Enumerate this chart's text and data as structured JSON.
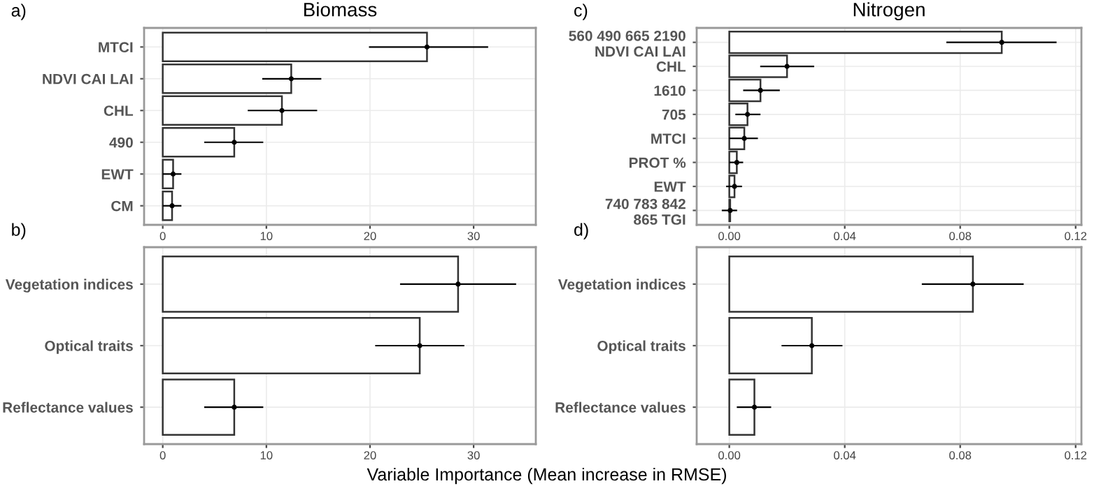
{
  "chart_data": [
    {
      "type": "bar",
      "orientation": "horizontal",
      "title": "Biomass",
      "annotations": [
        "a)"
      ],
      "categories": [
        "MTCI",
        "NDVI CAI LAI",
        "CHL",
        "490",
        "EWT",
        "CM"
      ],
      "series": [
        {
          "type": "bar",
          "color": "#ffffff",
          "values": [
            25.5,
            12.4,
            11.5,
            6.9,
            1.0,
            0.9
          ]
        },
        {
          "type": "scatter",
          "color": "#000000",
          "marker": "circle",
          "values": [
            25.5,
            12.4,
            11.5,
            6.9,
            1.0,
            0.9
          ],
          "errors": [
            [
              19.9,
              31.4
            ],
            [
              9.6,
              15.3
            ],
            [
              8.2,
              14.9
            ],
            [
              4.0,
              9.7
            ],
            [
              0,
              1.8
            ],
            [
              0,
              1.8
            ]
          ]
        }
      ],
      "xlim": [
        -1.8,
        36
      ],
      "xticks": [
        0,
        10,
        20,
        30
      ],
      "grid": true
    },
    {
      "type": "bar",
      "orientation": "horizontal",
      "title": "Nitrogen",
      "annotations": [
        "c)"
      ],
      "categories": [
        "560 490 665 2190\nNDVI CAI LAI",
        "CHL",
        "1610",
        "705",
        "MTCI",
        "PROT %",
        "EWT",
        "740 783 842\n865 TGI"
      ],
      "series": [
        {
          "type": "bar",
          "color": "#ffffff",
          "values": [
            0.0944,
            0.02,
            0.0108,
            0.0063,
            0.0052,
            0.0026,
            0.0018,
            0.0003
          ]
        },
        {
          "type": "scatter",
          "color": "#000000",
          "marker": "circle",
          "values": [
            0.0944,
            0.02,
            0.0108,
            0.0063,
            0.0052,
            0.0026,
            0.0018,
            0.0003
          ],
          "errors": [
            [
              0.0752,
              0.1134
            ],
            [
              0.0107,
              0.0294
            ],
            [
              0.0048,
              0.0175
            ],
            [
              0.0021,
              0.0108
            ],
            [
              0,
              0.0099
            ],
            [
              0,
              0.0048
            ],
            [
              -0.0011,
              0.0044
            ],
            [
              -0.0026,
              0.0027
            ]
          ]
        }
      ],
      "xlim": [
        -0.0113,
        0.122
      ],
      "xticks": [
        {
          "value": 0,
          "label": "0.00"
        },
        0.04,
        0.08,
        0.12
      ],
      "grid": true
    },
    {
      "type": "bar",
      "orientation": "horizontal",
      "annotations": [
        "b)"
      ],
      "xlabel": "Variable Importance (Mean increase in RMSE)",
      "categories": [
        "Vegetation indices",
        "Optical traits",
        "Reflectance values"
      ],
      "series": [
        {
          "type": "bar",
          "color": "#ffffff",
          "values": [
            28.5,
            24.8,
            6.9
          ]
        },
        {
          "type": "scatter",
          "color": "#000000",
          "marker": "circle",
          "values": [
            28.5,
            24.8,
            6.9
          ],
          "errors": [
            [
              22.9,
              34.1
            ],
            [
              20.5,
              29.1
            ],
            [
              4.0,
              9.7
            ]
          ]
        }
      ],
      "xlim": [
        -1.8,
        36
      ],
      "xticks": [
        0,
        10,
        20,
        30
      ],
      "grid": true
    },
    {
      "type": "bar",
      "orientation": "horizontal",
      "annotations": [
        "d)"
      ],
      "categories": [
        "Vegetation indices",
        "Optical traits",
        "Reflectance values"
      ],
      "series": [
        {
          "type": "bar",
          "color": "#ffffff",
          "values": [
            0.0844,
            0.0286,
            0.0087
          ]
        },
        {
          "type": "scatter",
          "color": "#000000",
          "marker": "circle",
          "values": [
            0.0844,
            0.0286,
            0.0087
          ],
          "errors": [
            [
              0.0667,
              0.102
            ],
            [
              0.0181,
              0.0392
            ],
            [
              0.0026,
              0.0145
            ]
          ]
        }
      ],
      "xlim": [
        -0.0113,
        0.122
      ],
      "xticks": [
        {
          "value": 0,
          "label": "0.00"
        },
        0.04,
        0.08,
        0.12
      ],
      "grid": true
    }
  ]
}
